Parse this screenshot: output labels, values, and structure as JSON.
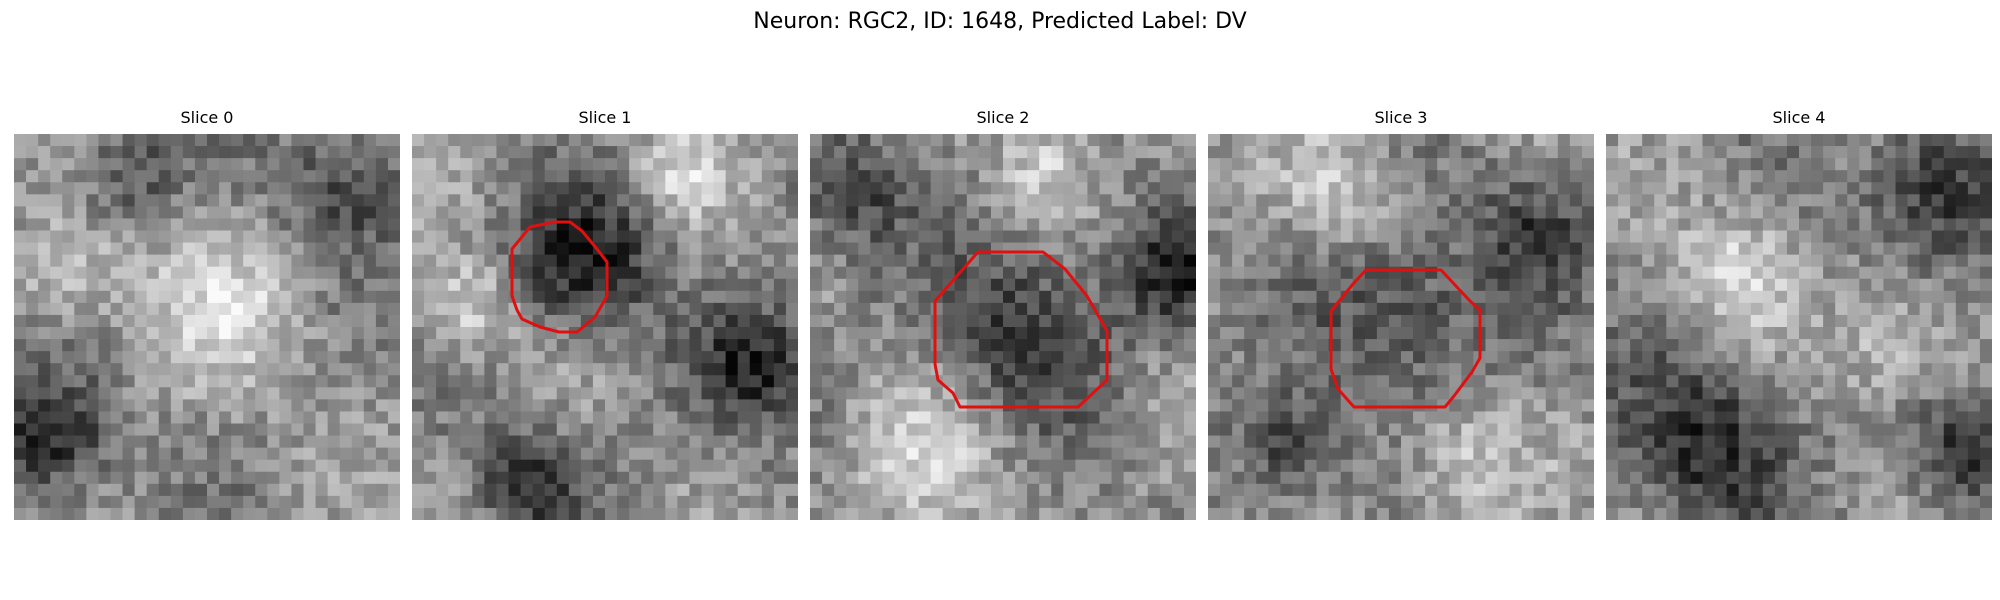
{
  "figure": {
    "title": "Neuron: RGC2, ID: 1648, Predicted Label: DV"
  },
  "outline_color": "#e01010",
  "slices": [
    {
      "title": "Slice 0",
      "has_outline": false
    },
    {
      "title": "Slice 1",
      "has_outline": true
    },
    {
      "title": "Slice 2",
      "has_outline": true
    },
    {
      "title": "Slice 3",
      "has_outline": true
    },
    {
      "title": "Slice 4",
      "has_outline": false
    }
  ]
}
